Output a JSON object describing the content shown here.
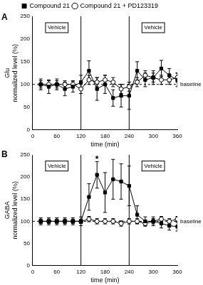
{
  "chart_data": [
    {
      "type": "line",
      "title": "A",
      "legend": "top",
      "xlabel": "time (min)",
      "ylabel": [
        "Glu",
        "normalized level (%)"
      ],
      "x": [
        20,
        40,
        60,
        80,
        100,
        120,
        140,
        160,
        180,
        200,
        220,
        240,
        260,
        280,
        300,
        320,
        340,
        360
      ],
      "xlim": [
        0,
        360
      ],
      "xticks": [
        0,
        60,
        120,
        180,
        240,
        300,
        360
      ],
      "ylim": [
        0,
        250
      ],
      "yticks": [
        0,
        50,
        100,
        150,
        200,
        250
      ],
      "vlines": [
        120,
        240
      ],
      "baseline": {
        "value": 100,
        "label": "baseline"
      },
      "annotations": [
        {
          "text": "Vehicle",
          "x": 60,
          "y": 225
        },
        {
          "text": "Vehicle",
          "x": 300,
          "y": 225
        }
      ],
      "series": [
        {
          "name": "Compound 21",
          "color": "#000000",
          "marker": "square",
          "values": [
            100,
            95,
            100,
            90,
            95,
            105,
            130,
            90,
            100,
            70,
            75,
            75,
            130,
            110,
            115,
            135,
            120,
            110
          ],
          "errors": [
            12,
            15,
            12,
            15,
            12,
            15,
            22,
            25,
            20,
            18,
            25,
            30,
            20,
            15,
            15,
            18,
            15,
            15
          ]
        },
        {
          "name": "Compound 21 + PD123319",
          "color": "#000000",
          "marker": "open circle",
          "values": [
            100,
            100,
            100,
            100,
            100,
            90,
            110,
            105,
            110,
            105,
            90,
            95,
            105,
            120,
            115,
            110,
            110,
            115
          ],
          "errors": [
            8,
            8,
            8,
            8,
            8,
            10,
            10,
            10,
            10,
            10,
            10,
            10,
            10,
            10,
            10,
            10,
            10,
            10
          ]
        }
      ]
    },
    {
      "type": "line",
      "title": "B",
      "xlabel": "time (min)",
      "ylabel": [
        "GABA",
        "normalized level (%)"
      ],
      "x": [
        20,
        40,
        60,
        80,
        100,
        120,
        140,
        160,
        180,
        200,
        220,
        240,
        260,
        280,
        300,
        320,
        340,
        360
      ],
      "xlim": [
        0,
        360
      ],
      "xticks": [
        0,
        60,
        120,
        180,
        240,
        300,
        360
      ],
      "ylim": [
        0,
        250
      ],
      "yticks": [
        0,
        50,
        100,
        150,
        200,
        250
      ],
      "vlines": [
        120,
        240
      ],
      "baseline": {
        "value": 100,
        "label": "baseline"
      },
      "annotations": [
        {
          "text": "Vehicle",
          "x": 60,
          "y": 225
        },
        {
          "text": "Vehicle",
          "x": 300,
          "y": 225
        },
        {
          "text": "*",
          "x": 160,
          "y": 240
        }
      ],
      "series": [
        {
          "color": "#000000",
          "marker": "square",
          "values": [
            100,
            100,
            100,
            100,
            100,
            100,
            155,
            205,
            165,
            195,
            190,
            180,
            115,
            100,
            100,
            95,
            90,
            88
          ],
          "errors": [
            8,
            8,
            8,
            8,
            8,
            10,
            30,
            30,
            45,
            45,
            40,
            45,
            20,
            10,
            10,
            10,
            10,
            10
          ]
        },
        {
          "color": "#000000",
          "marker": "open circle",
          "values": [
            100,
            100,
            100,
            100,
            100,
            100,
            105,
            100,
            100,
            100,
            95,
            100,
            100,
            95,
            100,
            105,
            100,
            105
          ],
          "errors": [
            5,
            5,
            5,
            5,
            5,
            5,
            6,
            6,
            6,
            6,
            6,
            6,
            6,
            6,
            6,
            6,
            6,
            6
          ]
        }
      ]
    }
  ]
}
